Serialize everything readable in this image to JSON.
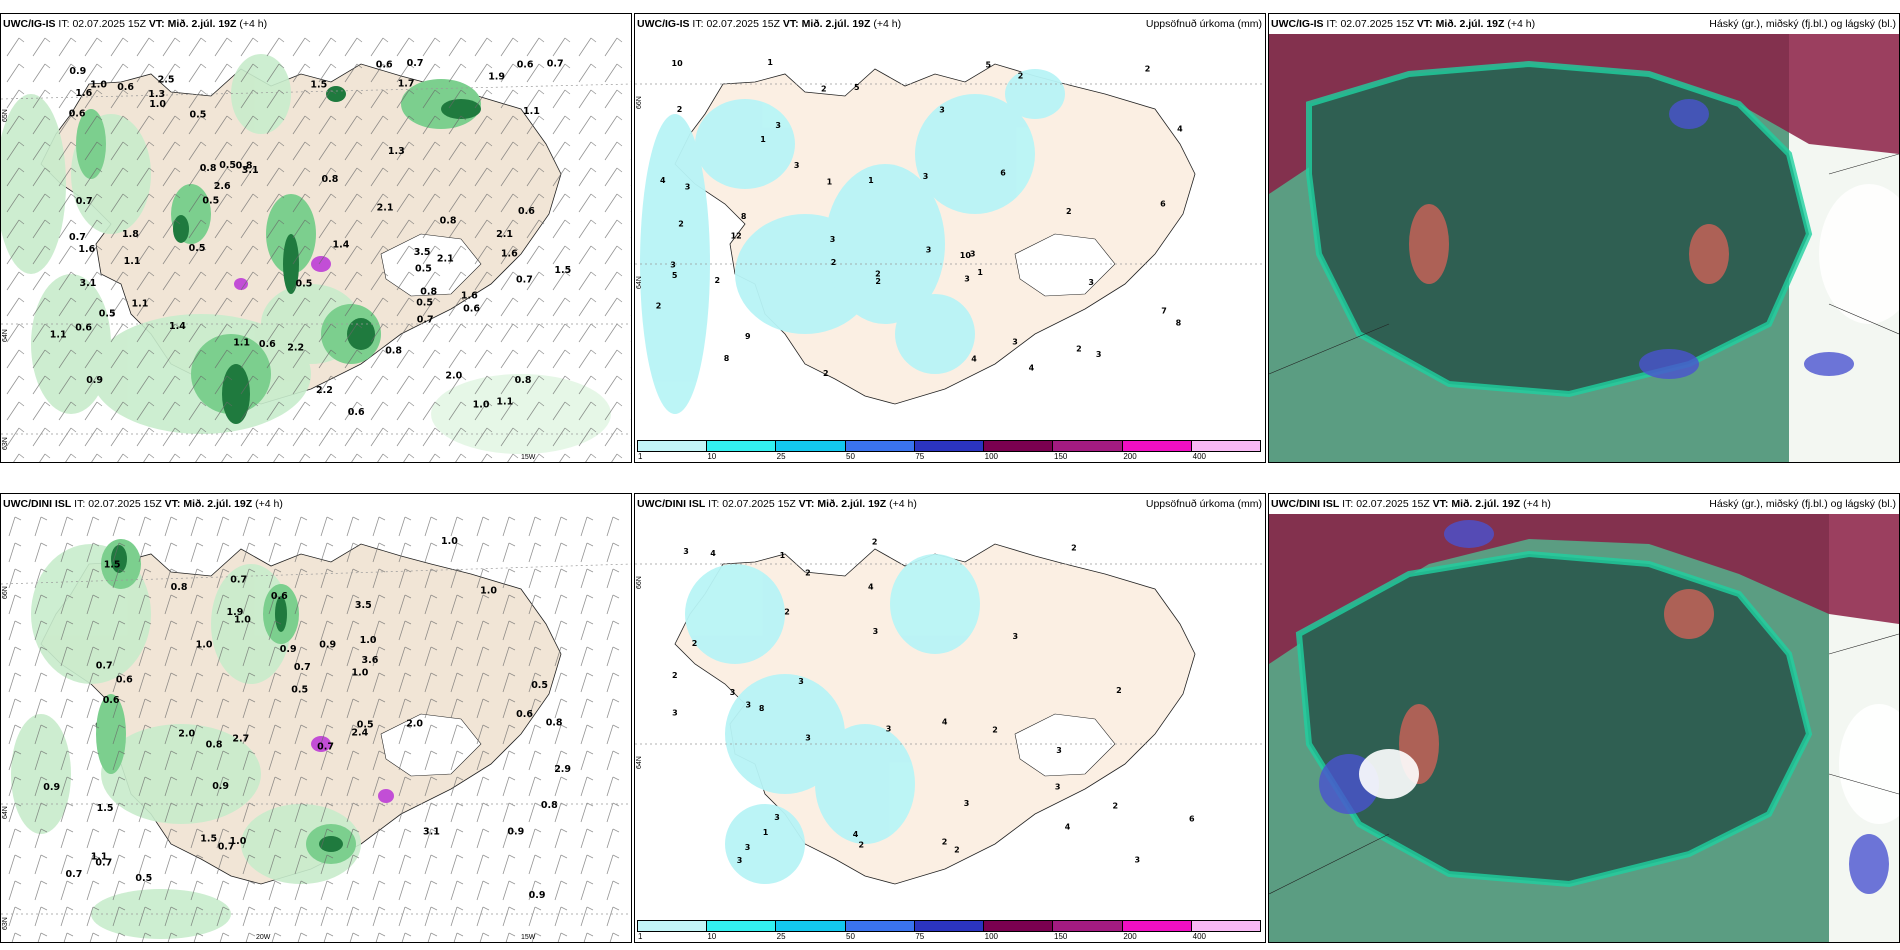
{
  "panels": [
    {
      "id": "p1",
      "model": "UWC/IG-IS",
      "it_label": "IT:",
      "it_value": "02.07.2025 15Z",
      "vt_label": "VT:",
      "vt_value": "Mið. 2.júl. 19Z",
      "lead": "(+4 h)",
      "field": "",
      "lat_labels": [
        "65N",
        "64N",
        "63N"
      ],
      "lon_labels": [
        "15W"
      ],
      "values": [
        "0.5",
        "1.6",
        "0.9",
        "2.5",
        "3.1",
        "2.0",
        "0.6",
        "1.7",
        "0.8",
        "0.6",
        "0.6",
        "0.7",
        "1.6",
        "0.8",
        "1.1",
        "0.6",
        "0.5",
        "1.4",
        "0.8",
        "1.1",
        "0.7",
        "1.9",
        "0.5",
        "0.7",
        "0.6",
        "1.3",
        "0.8",
        "1.6",
        "1.0",
        "0.8",
        "2.2",
        "0.8",
        "2.6",
        "0.5",
        "2.1",
        "0.6",
        "0.5",
        "1.8",
        "2.2",
        "0.5",
        "1.1",
        "0.7",
        "1.1",
        "0.6",
        "1.6",
        "1.4",
        "1.1",
        "1.0",
        "2.1",
        "0.7",
        "1.5",
        "0.5",
        "0.6",
        "3.5",
        "0.7",
        "1.0",
        "1.3",
        "0.9",
        "1.1",
        "0.6",
        "2.1",
        "0.5",
        "0.8",
        "3.1",
        "1.5"
      ]
    },
    {
      "id": "p2",
      "model": "UWC/IG-IS",
      "it_label": "IT:",
      "it_value": "02.07.2025 15Z",
      "vt_label": "VT:",
      "vt_value": "Mið. 2.júl. 19Z",
      "lead": "(+4 h)",
      "field": "Uppsöfnuð úrkoma (mm)",
      "lat_labels": [
        "66N",
        "64N"
      ],
      "lon_labels": [],
      "values": [
        "1",
        "3",
        "2",
        "3",
        "3",
        "1",
        "2",
        "3",
        "1",
        "3",
        "9",
        "4",
        "2",
        "2",
        "3",
        "7",
        "6",
        "5",
        "2",
        "1",
        "3",
        "10",
        "2",
        "8",
        "10",
        "5",
        "3",
        "2",
        "12",
        "8",
        "6",
        "2",
        "5",
        "2",
        "3",
        "1",
        "4",
        "2",
        "3",
        "3",
        "8",
        "3",
        "4",
        "2",
        "2",
        "3",
        "2",
        "4"
      ],
      "legend": [
        "1",
        "10",
        "25",
        "50",
        "75",
        "100",
        "150",
        "200",
        "400"
      ]
    },
    {
      "id": "p3",
      "model": "UWC/IG-IS",
      "it_label": "IT:",
      "it_value": "02.07.2025 15Z",
      "vt_label": "VT:",
      "vt_value": "Mið. 2.júl. 19Z",
      "lead": "(+4 h)",
      "field": "Háský (gr.), miðský (fj.bl.) og lágský (bl.)"
    },
    {
      "id": "p4",
      "model": "UWC/DINI ISL",
      "it_label": "IT:",
      "it_value": "02.07.2025 15Z",
      "vt_label": "VT:",
      "vt_value": "Mið. 2.júl. 19Z",
      "lead": "(+4 h)",
      "field": "",
      "lat_labels": [
        "66N",
        "64N",
        "63N"
      ],
      "lon_labels": [
        "20W",
        "15W"
      ],
      "values": [
        "1.5",
        "0.7",
        "0.9",
        "0.5",
        "1.5",
        "1.0",
        "0.7",
        "0.9",
        "2.0",
        "0.8",
        "1.0",
        "1.0",
        "1.1",
        "1.0",
        "0.5",
        "0.8",
        "0.9",
        "0.9",
        "0.7",
        "0.6",
        "0.7",
        "0.8",
        "0.9",
        "0.7",
        "1.0",
        "0.7",
        "0.7",
        "0.6",
        "0.5",
        "0.8",
        "2.0",
        "1.0",
        "2.7",
        "0.5",
        "3.1",
        "2.9",
        "2.4",
        "3.6",
        "0.6",
        "1.9",
        "3.5",
        "0.6",
        "1.5",
        "0.9",
        "1.0"
      ]
    },
    {
      "id": "p5",
      "model": "UWC/DINI ISL",
      "it_label": "IT:",
      "it_value": "02.07.2025 15Z",
      "vt_label": "VT:",
      "vt_value": "Mið. 2.júl. 19Z",
      "lead": "(+4 h)",
      "field": "Uppsöfnuð úrkoma (mm)",
      "lat_labels": [
        "66N",
        "64N"
      ],
      "lon_labels": [],
      "values": [
        "1",
        "2",
        "3",
        "4",
        "2",
        "3",
        "3",
        "2",
        "3",
        "3",
        "2",
        "2",
        "3",
        "3",
        "2",
        "6",
        "3",
        "4",
        "3",
        "3",
        "8",
        "3",
        "2",
        "4",
        "3",
        "3",
        "3",
        "2",
        "2",
        "2",
        "4",
        "2",
        "3",
        "1",
        "4",
        "2",
        "3"
      ],
      "legend": [
        "1",
        "10",
        "25",
        "50",
        "75",
        "100",
        "150",
        "200",
        "400"
      ]
    },
    {
      "id": "p6",
      "model": "UWC/DINI ISL",
      "it_label": "IT:",
      "it_value": "02.07.2025 15Z",
      "vt_label": "VT:",
      "vt_value": "Mið. 2.júl. 19Z",
      "lead": "(+4 h)",
      "field": "Háský (gr.), miðský (fj.bl.) og lágský (bl.)"
    }
  ],
  "colors": {
    "land": "#f1e5d6",
    "land_light": "#fbefe3",
    "precip_light": "#c8eccc",
    "precip_mid": "#7ccf8e",
    "precip_dark": "#1f7a3e",
    "cyan_field": "#b8f4f6",
    "cloud_high": "#2f5f52",
    "cloud_low": "#1fd1a0",
    "cloud_mid": "#8b1f45",
    "cloud_blue": "#4a52d0",
    "legend": [
      "#c4f5f7",
      "#33f0f0",
      "#13c8ef",
      "#3a73ef",
      "#2b34c0",
      "#7a0050",
      "#a31b81",
      "#f00fc4",
      "#f7b8f4"
    ]
  }
}
